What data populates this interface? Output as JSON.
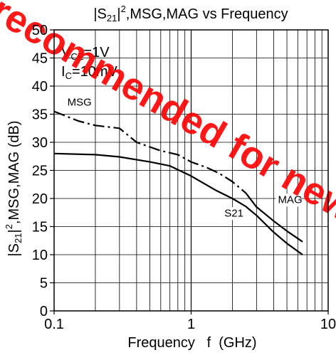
{
  "chart_data": {
    "type": "line",
    "title": {
      "pre": "|S",
      "sub": "21",
      "mid": "|",
      "sup": "2",
      "post": ",MSG,MAG vs Frequency"
    },
    "xlabel": "Frequency   f  (GHz)",
    "ylabel": {
      "pre": "|S",
      "sub": "21",
      "mid": "|",
      "sup": "2",
      "post": ",MSG,MAG (dB)"
    },
    "x_scale": "log",
    "xlim": [
      0.1,
      10
    ],
    "ylim": [
      0,
      50
    ],
    "x_ticks": [
      {
        "value": 0.1,
        "label": "0.1"
      },
      {
        "value": 1,
        "label": "1"
      },
      {
        "value": 10,
        "label": "10"
      }
    ],
    "y_ticks": [
      0,
      5,
      10,
      15,
      20,
      25,
      30,
      35,
      40,
      45,
      50
    ],
    "grid": true,
    "conditions": [
      {
        "pre": "V",
        "sub": "CE",
        "post": "=1V"
      },
      {
        "pre": "I",
        "sub": "C",
        "post": "=10mV"
      }
    ],
    "watermark": {
      "text": "Not recommended for new design",
      "color": "#ff0000"
    },
    "series": [
      {
        "name": "MSG",
        "style": "dash-dot",
        "x": [
          0.1,
          0.15,
          0.2,
          0.3,
          0.4,
          0.6,
          0.8,
          1.0,
          1.3,
          1.6,
          2.0,
          2.5
        ],
        "y": [
          35.5,
          33.8,
          33.0,
          32.5,
          30.0,
          28.5,
          27.8,
          26.5,
          25.5,
          24.5,
          23.0,
          21.0
        ]
      },
      {
        "name": "MAG",
        "style": "solid",
        "x": [
          2.5,
          3.0,
          4.0,
          5.0,
          6.5
        ],
        "y": [
          21.0,
          18.5,
          16.0,
          14.2,
          12.3
        ]
      },
      {
        "name": "S21",
        "style": "solid",
        "x": [
          0.1,
          0.2,
          0.3,
          0.5,
          0.7,
          1.0,
          1.5,
          2.0,
          2.5,
          3.0,
          4.0,
          5.0,
          6.5
        ],
        "y": [
          28.0,
          27.8,
          27.4,
          26.5,
          25.8,
          24.0,
          21.5,
          20.0,
          18.6,
          17.0,
          14.0,
          12.0,
          10.0
        ]
      }
    ],
    "annotations": [
      {
        "text": "MSG",
        "x": 0.125,
        "y": 36.5
      },
      {
        "text": "MAG",
        "x": 4.3,
        "y": 19.2
      },
      {
        "text": "S21",
        "x": 1.75,
        "y": 16.8
      }
    ]
  }
}
